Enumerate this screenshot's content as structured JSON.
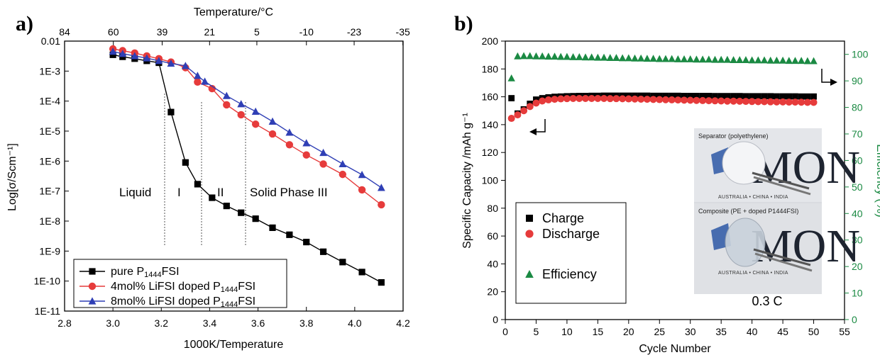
{
  "colors": {
    "black": "#000000",
    "red": "#e63b3b",
    "blue": "#2f3fb5",
    "green": "#1b8a43",
    "axis_right": "#1b8a43"
  },
  "panel_a": {
    "label": "a)",
    "top_axis_label": "Temperature/°C",
    "top_ticks": [
      "84",
      "60",
      "39",
      "21",
      "5",
      "-10",
      "-23",
      "-35"
    ],
    "region_labels": [
      "Liquid",
      "I",
      "II",
      "Solid Phase III"
    ]
  },
  "panel_b": {
    "label": "b)",
    "note": "0.3 C",
    "inset_caption_top": "Separator (polyethylene)",
    "inset_caption_bottom": "Composite (PE + doped P1444FSI)",
    "inset_logo_text": "MON",
    "inset_sub_text": "AUSTRALIA • CHINA • INDIA"
  },
  "chart_data": [
    {
      "type": "line",
      "xlabel": "1000K/Temperature",
      "ylabel": "Log[σ/Scm⁻¹]",
      "xlim": [
        2.8,
        4.2
      ],
      "ylim_exponent": [
        -11,
        -2
      ],
      "yscale": "log",
      "x_ticks": [
        "2.8",
        "3.0",
        "3.2",
        "3.4",
        "3.6",
        "3.8",
        "4.0",
        "4.2"
      ],
      "y_ticks": [
        "1E-11",
        "1E-10",
        "1E-9",
        "1E-8",
        "1E-7",
        "1E-6",
        "1E-5",
        "1E-4",
        "1E-3",
        "0.01"
      ],
      "legend_position": "bottom-left",
      "series": [
        {
          "name": "pure P1444FSI",
          "name_main": "pure P",
          "name_sub": "1444",
          "name_tail": "FSI",
          "marker": "square",
          "color": "#000000",
          "x": [
            3.0,
            3.04,
            3.09,
            3.14,
            3.19,
            3.24,
            3.3,
            3.35,
            3.41,
            3.47,
            3.53,
            3.59,
            3.66,
            3.73,
            3.8,
            3.87,
            3.95,
            4.03,
            4.11
          ],
          "y": [
            0.0035,
            0.003,
            0.0026,
            0.0022,
            0.0019,
            4.3e-05,
            9e-07,
            1.7e-07,
            6e-08,
            3.2e-08,
            1.9e-08,
            1.2e-08,
            6e-09,
            3.5e-09,
            2e-09,
            9.5e-10,
            4.3e-10,
            2e-10,
            9e-11
          ]
        },
        {
          "name": "4mol% LiFSI doped P1444FSI",
          "name_main": "4mol% LiFSI doped P",
          "name_sub": "1444",
          "name_tail": "FSI",
          "marker": "circle",
          "color": "#e63b3b",
          "x": [
            3.0,
            3.04,
            3.09,
            3.14,
            3.19,
            3.24,
            3.3,
            3.35,
            3.41,
            3.47,
            3.53,
            3.59,
            3.66,
            3.73,
            3.8,
            3.87,
            3.95,
            4.03,
            4.11
          ],
          "y": [
            0.0055,
            0.0048,
            0.004,
            0.0032,
            0.0026,
            0.002,
            0.0013,
            0.00043,
            0.00026,
            7.5e-05,
            3.5e-05,
            1.7e-05,
            8e-06,
            3.5e-06,
            1.6e-06,
            8e-07,
            3.6e-07,
            1.1e-07,
            3.5e-08
          ]
        },
        {
          "name": "8mol% LiFSI doped P1444FSI",
          "name_main": "8mol% LiFSI doped P",
          "name_sub": "1444",
          "name_tail": "FSI",
          "marker": "triangle",
          "color": "#2f3fb5",
          "x": [
            3.0,
            3.04,
            3.09,
            3.14,
            3.19,
            3.24,
            3.3,
            3.35,
            3.38,
            3.47,
            3.53,
            3.59,
            3.66,
            3.73,
            3.8,
            3.87,
            3.95,
            4.03,
            4.11
          ],
          "y": [
            0.0045,
            0.0038,
            0.0032,
            0.0027,
            0.0022,
            0.0018,
            0.0015,
            0.0007,
            0.00045,
            0.00015,
            8e-05,
            4.5e-05,
            2.1e-05,
            9e-06,
            4e-06,
            1.9e-06,
            8e-07,
            3.5e-07,
            1.3e-07
          ]
        }
      ]
    },
    {
      "type": "scatter",
      "xlabel": "Cycle Number",
      "ylabel": "Specific Capacity /mAh g⁻¹",
      "ylabel_right": "Efficiency (%)",
      "xlim": [
        0,
        55
      ],
      "ylim": [
        0,
        200
      ],
      "ylim_right": [
        0,
        105
      ],
      "x_ticks": [
        "0",
        "5",
        "10",
        "15",
        "20",
        "25",
        "30",
        "35",
        "40",
        "45",
        "50",
        "55"
      ],
      "y_ticks": [
        "0",
        "20",
        "40",
        "60",
        "80",
        "100",
        "120",
        "140",
        "160",
        "180",
        "200"
      ],
      "y_ticks_right": [
        "0",
        "10",
        "20",
        "30",
        "40",
        "50",
        "60",
        "70",
        "80",
        "90",
        "100"
      ],
      "legend_position": "bottom-left",
      "series": [
        {
          "name": "Charge",
          "marker": "square",
          "color": "#000000",
          "axis": "left",
          "x": [
            1,
            2,
            3,
            4,
            5,
            6,
            7,
            8,
            9,
            10,
            11,
            12,
            13,
            14,
            15,
            16,
            17,
            18,
            19,
            20,
            21,
            22,
            23,
            24,
            25,
            26,
            27,
            28,
            29,
            30,
            31,
            32,
            33,
            34,
            35,
            36,
            37,
            38,
            39,
            40,
            41,
            42,
            43,
            44,
            45,
            46,
            47,
            48,
            49,
            50
          ],
          "y": [
            159,
            148,
            151,
            155,
            158,
            159,
            159.6,
            160,
            160.2,
            160.4,
            160.5,
            160.6,
            160.6,
            160.7,
            160.7,
            160.8,
            160.8,
            160.8,
            160.8,
            160.8,
            160.8,
            160.8,
            160.8,
            160.7,
            160.7,
            160.7,
            160.7,
            160.7,
            160.6,
            160.6,
            160.6,
            160.6,
            160.6,
            160.5,
            160.5,
            160.5,
            160.5,
            160.5,
            160.4,
            160.4,
            160.4,
            160.4,
            160.4,
            160.3,
            160.3,
            160.3,
            160.3,
            160.2,
            160.2,
            160.2
          ]
        },
        {
          "name": "Discharge",
          "marker": "circle",
          "color": "#e63b3b",
          "axis": "left",
          "x": [
            1,
            2,
            3,
            4,
            5,
            6,
            7,
            8,
            9,
            10,
            11,
            12,
            13,
            14,
            15,
            16,
            17,
            18,
            19,
            20,
            21,
            22,
            23,
            24,
            25,
            26,
            27,
            28,
            29,
            30,
            31,
            32,
            33,
            34,
            35,
            36,
            37,
            38,
            39,
            40,
            41,
            42,
            43,
            44,
            45,
            46,
            47,
            48,
            49,
            50
          ],
          "y": [
            144.5,
            147,
            150,
            153,
            155.5,
            157,
            157.8,
            158.2,
            158.5,
            158.7,
            158.8,
            158.8,
            158.8,
            158.8,
            158.8,
            158.8,
            158.7,
            158.7,
            158.6,
            158.5,
            158.4,
            158.3,
            158.2,
            158.1,
            158.0,
            157.9,
            157.8,
            157.7,
            157.6,
            157.5,
            157.4,
            157.3,
            157.2,
            157.1,
            157.0,
            156.9,
            156.9,
            156.8,
            156.7,
            156.6,
            156.5,
            156.5,
            156.4,
            156.3,
            156.3,
            156.2,
            156.2,
            156.1,
            156.0,
            156.0
          ]
        },
        {
          "name": "Efficiency",
          "marker": "triangle",
          "color": "#1b8a43",
          "axis": "right",
          "x": [
            1,
            2,
            3,
            4,
            5,
            6,
            7,
            8,
            9,
            10,
            11,
            12,
            13,
            14,
            15,
            16,
            17,
            18,
            19,
            20,
            21,
            22,
            23,
            24,
            25,
            26,
            27,
            28,
            29,
            30,
            31,
            32,
            33,
            34,
            35,
            36,
            37,
            38,
            39,
            40,
            41,
            42,
            43,
            44,
            45,
            46,
            47,
            48,
            49,
            50
          ],
          "y": [
            91,
            99.3,
            99.4,
            99.4,
            99.3,
            99.3,
            99.2,
            99.2,
            99.1,
            99.1,
            99.0,
            99.0,
            98.9,
            98.9,
            98.8,
            98.8,
            98.7,
            98.7,
            98.6,
            98.6,
            98.5,
            98.5,
            98.4,
            98.4,
            98.3,
            98.3,
            98.3,
            98.2,
            98.2,
            98.2,
            98.1,
            98.1,
            98.1,
            98.0,
            98.0,
            98.0,
            97.9,
            97.9,
            97.9,
            97.8,
            97.8,
            97.8,
            97.7,
            97.7,
            97.7,
            97.6,
            97.6,
            97.6,
            97.5,
            97.5
          ]
        }
      ]
    }
  ]
}
